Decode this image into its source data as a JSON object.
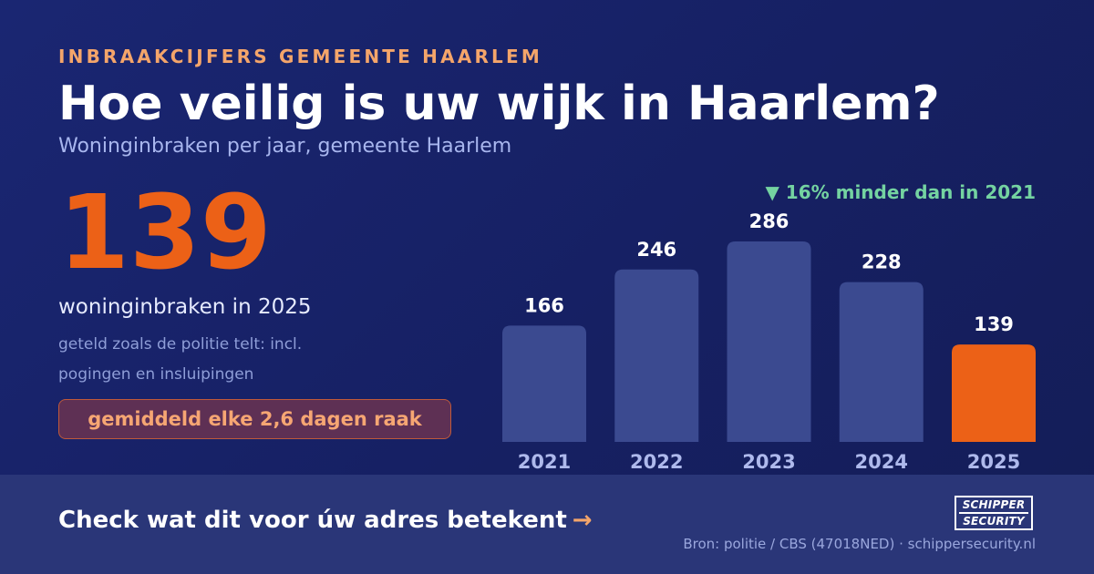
{
  "header": {
    "eyebrow": "INBRAAKCIJFERS GEMEENTE HAARLEM",
    "title": "Hoe veilig is uw wijk in Haarlem?",
    "subtitle": "Woninginbraken per jaar, gemeente Haarlem"
  },
  "highlight": {
    "value": "139",
    "caption": "woninginbraken in 2025",
    "note": "geteld zoals de politie telt: incl. pogingen en insluipingen",
    "pill": "gemiddeld elke 2,6 dagen raak"
  },
  "chart_data": {
    "type": "bar",
    "categories": [
      "2021",
      "2022",
      "2023",
      "2024",
      "2025"
    ],
    "values": [
      166,
      246,
      286,
      228,
      139
    ],
    "data_labels": [
      "166",
      "246",
      "286",
      "228",
      "139"
    ],
    "annotation": "▼ 16% minder dan in 2021",
    "bar_color": "#3b4a90",
    "highlight_color": "#ec6117",
    "highlight_category": "2025",
    "annotation_color": "#74d3a1",
    "grid": false
  },
  "footer": {
    "cta_text": "Check wat dit voor úw adres betekent",
    "cta_arrow": "→",
    "logo_line1": "SCHIPPER",
    "logo_line2": "SECURITY",
    "source": "Bron: politie / CBS (47018NED) · schippersecurity.nl"
  },
  "colors": {
    "background": "#1a2672",
    "accent_orange": "#ec6117",
    "eyebrow": "#f4a56a",
    "green": "#74d3a1"
  }
}
